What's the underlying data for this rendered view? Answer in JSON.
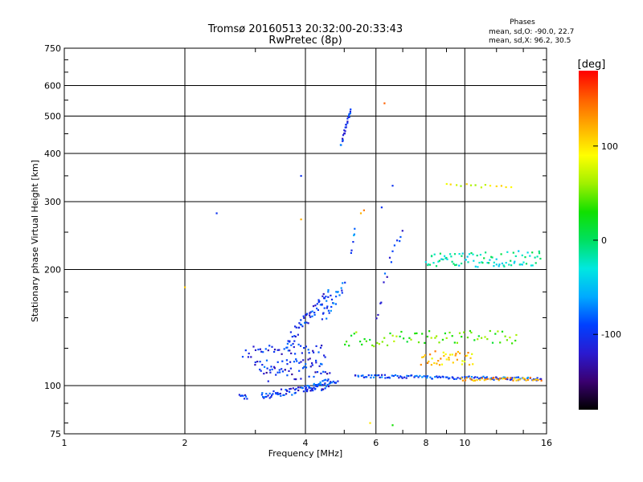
{
  "chart_data": {
    "type": "scatter",
    "title": "Tromsø 20160513 20:32:00-20:33:43",
    "subtitle": "RwPretec (8p)",
    "xlabel": "Frequency [MHz]",
    "ylabel": "Stationary phase Virtual Height [km]",
    "x_scale": "log",
    "y_scale": "log",
    "xlim": [
      1,
      16
    ],
    "ylim": [
      75,
      750
    ],
    "x_ticks": [
      1,
      2,
      4,
      6,
      8,
      10,
      16
    ],
    "y_ticks": [
      75,
      100,
      200,
      300,
      400,
      500,
      600,
      750
    ],
    "grid": true,
    "stats": {
      "title": "Phases",
      "line_o": "mean, sd,O: -90.0, 22.7",
      "line_x": "mean, sd,X:  96.2, 30.5"
    },
    "colorbar": {
      "label": "[deg]",
      "range": [
        -180,
        180
      ],
      "ticks": [
        100,
        0,
        -100
      ],
      "colors": [
        "#000000",
        "#3a0070",
        "#2a1ad0",
        "#0040ff",
        "#00aaff",
        "#00e8e0",
        "#00e060",
        "#10e000",
        "#a0f000",
        "#ffff00",
        "#ffb000",
        "#ff6000",
        "#ff0000"
      ]
    },
    "series": [
      {
        "traces": [
          {
            "f0": 2.75,
            "f1": 2.85,
            "h0": 93,
            "h1": 94,
            "n": 8,
            "phase": -100,
            "spread": 2
          },
          {
            "f0": 3.1,
            "f1": 4.6,
            "h0": 94,
            "h1": 100,
            "n": 70,
            "phase": -100,
            "spread": 2
          },
          {
            "f0": 4.0,
            "f1": 4.8,
            "h0": 98,
            "h1": 104,
            "n": 30,
            "phase": -95,
            "spread": 2
          },
          {
            "f0": 5.3,
            "f1": 15.5,
            "h0": 106,
            "h1": 104,
            "n": 120,
            "phase": -90,
            "spread": 1
          },
          {
            "f0": 9.8,
            "f1": 15.5,
            "h0": 104,
            "h1": 104,
            "n": 40,
            "phase": 120,
            "spread": 1
          },
          {
            "f0": 2.8,
            "f1": 4.4,
            "h0": 122,
            "h1": 126,
            "n": 40,
            "phase": -100,
            "spread": 4
          },
          {
            "f0": 3.0,
            "f1": 4.5,
            "h0": 112,
            "h1": 116,
            "n": 40,
            "phase": -100,
            "spread": 4
          },
          {
            "f0": 3.1,
            "f1": 4.6,
            "h0": 106,
            "h1": 109,
            "n": 30,
            "phase": -110,
            "spread": 4
          },
          {
            "f0": 3.6,
            "f1": 4.6,
            "h0": 128,
            "h1": 175,
            "n": 60,
            "phase": -100,
            "spread": 6
          },
          {
            "f0": 4.4,
            "f1": 5.0,
            "h0": 150,
            "h1": 180,
            "n": 25,
            "phase": -90,
            "spread": 6
          },
          {
            "f0": 4.9,
            "f1": 5.2,
            "h0": 420,
            "h1": 520,
            "n": 25,
            "phase": -100,
            "spread": 4
          },
          {
            "f0": 5.2,
            "f1": 5.3,
            "h0": 220,
            "h1": 250,
            "n": 6,
            "phase": -80,
            "spread": 8
          },
          {
            "f0": 5.0,
            "f1": 13.5,
            "h0": 132,
            "h1": 134,
            "n": 70,
            "phase": 40,
            "spread": 6
          },
          {
            "f0": 7.8,
            "f1": 10.5,
            "h0": 118,
            "h1": 118,
            "n": 40,
            "phase": 110,
            "spread": 5
          },
          {
            "f0": 8.0,
            "f1": 15.5,
            "h0": 210,
            "h1": 215,
            "n": 90,
            "phase": -20,
            "spread": 10
          },
          {
            "f0": 9.0,
            "f1": 13.0,
            "h0": 330,
            "h1": 330,
            "n": 14,
            "phase": 80,
            "spread": 4
          },
          {
            "f0": 6.0,
            "f1": 7.0,
            "h0": 150,
            "h1": 260,
            "n": 15,
            "phase": -100,
            "spread": 10
          }
        ],
        "scatter": [
          [
            2.4,
            280,
            -100
          ],
          [
            2.0,
            180,
            110
          ],
          [
            3.9,
            350,
            -100
          ],
          [
            3.9,
            270,
            120
          ],
          [
            3.0,
            115,
            -100
          ],
          [
            6.3,
            540,
            150
          ],
          [
            6.2,
            290,
            -100
          ],
          [
            6.6,
            330,
            -100
          ],
          [
            5.8,
            80,
            100
          ],
          [
            6.6,
            79,
            30
          ],
          [
            5.6,
            285,
            140
          ],
          [
            5.5,
            280,
            120
          ]
        ]
      }
    ]
  }
}
